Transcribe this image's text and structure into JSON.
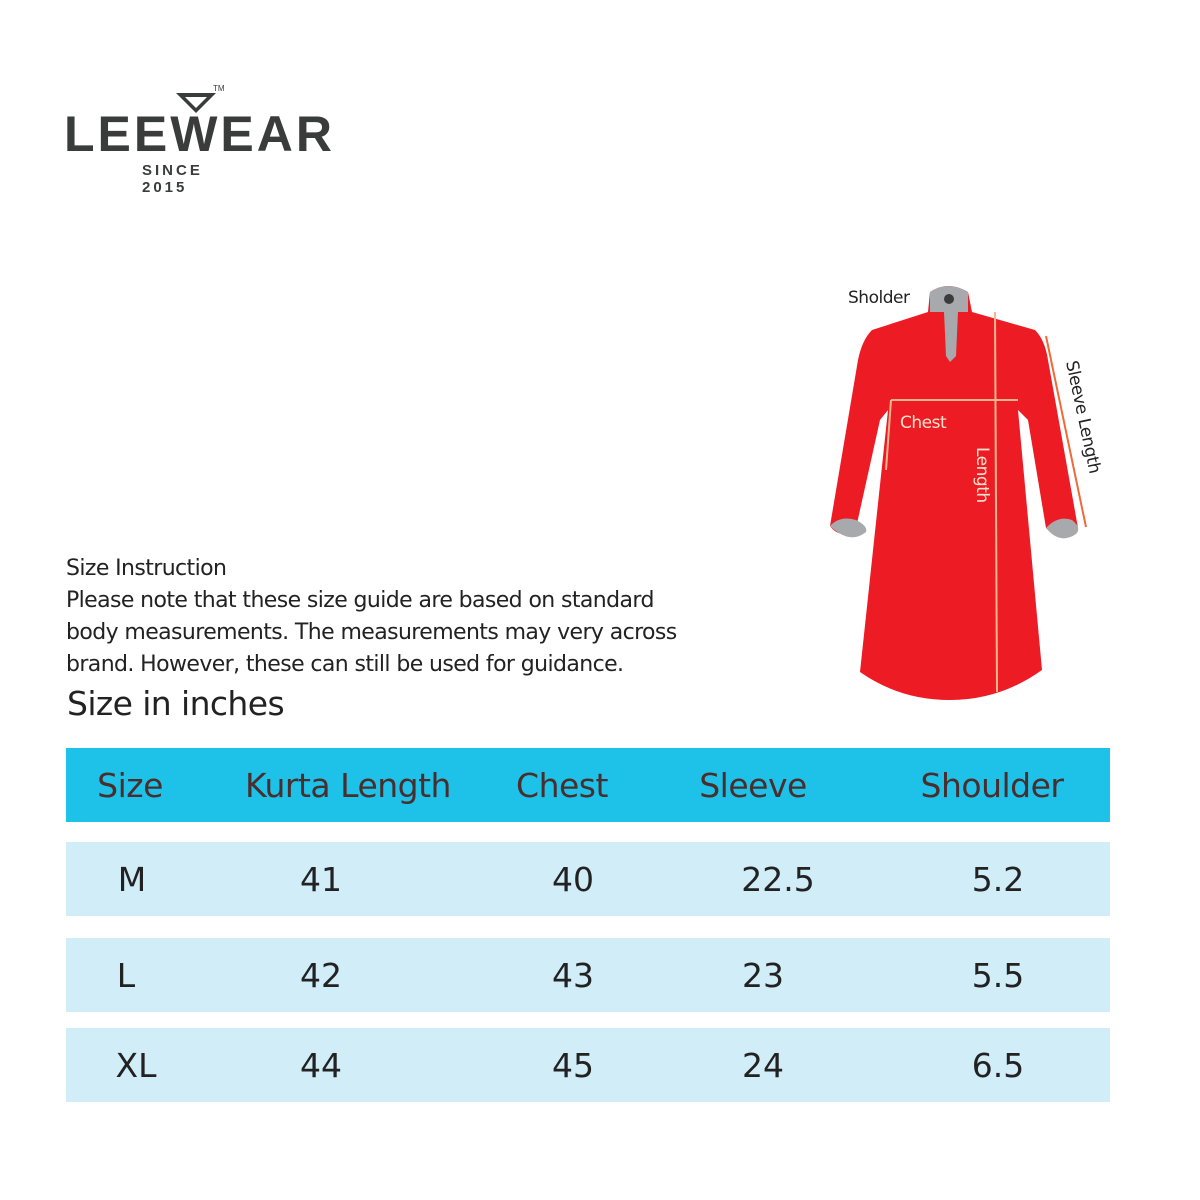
{
  "brand": {
    "name": "LEEWEAR",
    "tagline": "SINCE 2015",
    "trademark": "TM"
  },
  "instructions": {
    "heading": "Size Instruction",
    "lines": [
      "Please note that these size guide are based on standard",
      "body measurements. The measurements may very across",
      "brand. However, these can still be used for guidance."
    ]
  },
  "table_title": "Size in inches",
  "diagram": {
    "labels": {
      "shoulder": "Sholder",
      "chest": "Chest",
      "length": "Length",
      "sleeve": "Sleeve Length"
    },
    "colors": {
      "garment": "#ed1c24",
      "trim": "#a7a9ac",
      "measure_line": "#f7b58c"
    }
  },
  "size_table": {
    "headers": [
      "Size",
      "Kurta Length",
      "Chest",
      "Sleeve",
      "Shoulder"
    ],
    "rows": [
      [
        "M",
        "41",
        "40",
        "22.5",
        "5.2"
      ],
      [
        "L",
        "42",
        "43",
        "23",
        "5.5"
      ],
      [
        "XL",
        "44",
        "45",
        "24",
        "6.5"
      ]
    ],
    "colors": {
      "header_bg": "#1ec2e9",
      "row_bg": "#d0edf8"
    }
  }
}
